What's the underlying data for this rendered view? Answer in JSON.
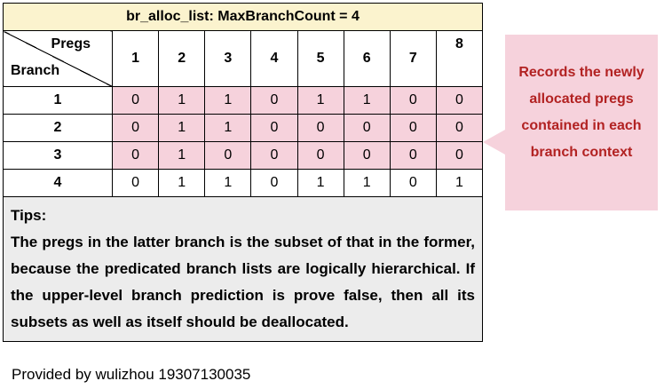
{
  "title": "br_alloc_list:   MaxBranchCount = 4",
  "header": {
    "pregs_label": "Pregs",
    "branch_label": "Branch",
    "columns": [
      "1",
      "2",
      "3",
      "4",
      "5",
      "6",
      "7",
      "8"
    ]
  },
  "rows": [
    {
      "branch": "1",
      "values": [
        "0",
        "1",
        "1",
        "0",
        "1",
        "1",
        "0",
        "0"
      ],
      "highlight": true
    },
    {
      "branch": "2",
      "values": [
        "0",
        "1",
        "1",
        "0",
        "0",
        "0",
        "0",
        "0"
      ],
      "highlight": true
    },
    {
      "branch": "3",
      "values": [
        "0",
        "1",
        "0",
        "0",
        "0",
        "0",
        "0",
        "0"
      ],
      "highlight": true
    },
    {
      "branch": "4",
      "values": [
        "0",
        "1",
        "1",
        "0",
        "1",
        "1",
        "0",
        "1"
      ],
      "highlight": false
    }
  ],
  "tips": {
    "title": "Tips:",
    "body": "The pregs in the latter branch is the subset of that in the former, because the predicated branch lists are logically hierarchical. If the upper-level branch prediction is prove false, then all its subsets as well as itself should be deallocated."
  },
  "callout": {
    "text": "Records the newly allocated pregs contained in each branch context"
  },
  "footer": "Provided by wulizhou 19307130035",
  "colors": {
    "title_bg": "#fbf3ce",
    "highlight_bg": "#f6d2dc",
    "tips_bg": "#ececec",
    "callout_bg": "#f6d2dc",
    "callout_text": "#b22222"
  }
}
